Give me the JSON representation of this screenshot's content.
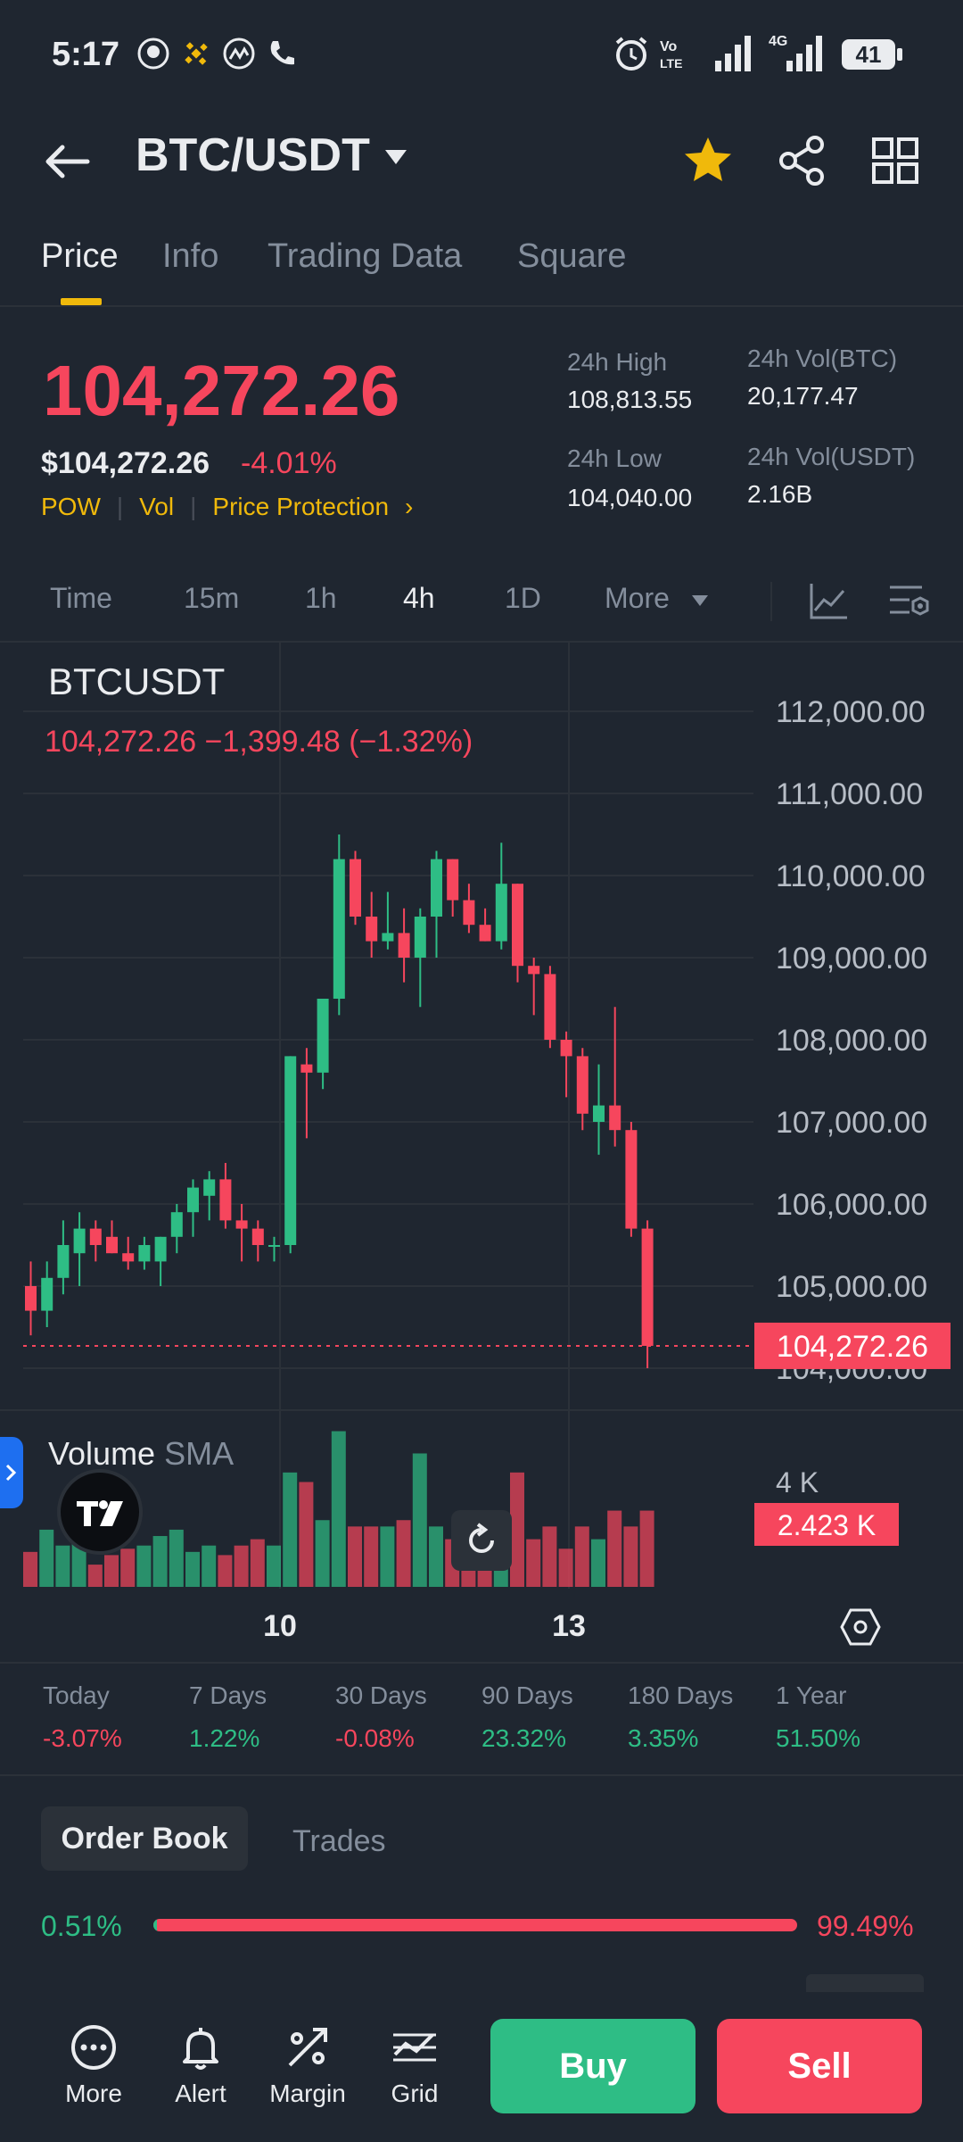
{
  "status_bar": {
    "time": "5:17",
    "network": "4G",
    "battery": "41"
  },
  "header": {
    "pair": "BTC/USDT"
  },
  "tabs": [
    {
      "label": "Price",
      "active": true
    },
    {
      "label": "Info",
      "active": false
    },
    {
      "label": "Trading Data",
      "active": false
    },
    {
      "label": "Square",
      "active": false
    }
  ],
  "price": {
    "last": "104,272.26",
    "usd": "$104,272.26",
    "change": "-4.01%",
    "tags": [
      "POW",
      "Vol",
      "Price Protection"
    ]
  },
  "stats": {
    "high_label": "24h High",
    "high": "108,813.55",
    "low_label": "24h Low",
    "low": "104,040.00",
    "vol_btc_label": "24h Vol(BTC)",
    "vol_btc": "20,177.47",
    "vol_usdt_label": "24h Vol(USDT)",
    "vol_usdt": "2.16B"
  },
  "timeframes": [
    "Time",
    "15m",
    "1h",
    "4h",
    "1D",
    "More"
  ],
  "active_timeframe": "4h",
  "chart_header": {
    "symbol": "BTCUSDT",
    "line": "104,272.26  −1,399.48 (−1.32%)"
  },
  "volume_header": {
    "title": "Volume",
    "sma": "SMA"
  },
  "colors": {
    "up": "#2ebd85",
    "down": "#f6465d",
    "accent": "#f0b90b",
    "bg": "#1f2630"
  },
  "chart_data": {
    "type": "candlestick",
    "y_axis_ticks": [
      "112,000.00",
      "111,000.00",
      "110,000.00",
      "109,000.00",
      "108,000.00",
      "107,000.00",
      "106,000.00",
      "105,000.00",
      "104,000.00"
    ],
    "ylim": [
      103500,
      112500
    ],
    "x_ticks": [
      "10",
      "13"
    ],
    "last_price_label": "104,272.26",
    "last_price": 104272.26,
    "volume_axis_label": "4 K",
    "last_volume_label": "2.423 K",
    "volume_max": 5.0,
    "candles": [
      {
        "o": 105000,
        "h": 105300,
        "l": 104400,
        "c": 104700
      },
      {
        "o": 104700,
        "h": 105300,
        "l": 104500,
        "c": 105100
      },
      {
        "o": 105100,
        "h": 105800,
        "l": 104900,
        "c": 105500
      },
      {
        "o": 105400,
        "h": 105900,
        "l": 105000,
        "c": 105700
      },
      {
        "o": 105700,
        "h": 105800,
        "l": 105300,
        "c": 105500
      },
      {
        "o": 105600,
        "h": 105800,
        "l": 105400,
        "c": 105400
      },
      {
        "o": 105400,
        "h": 105600,
        "l": 105200,
        "c": 105300
      },
      {
        "o": 105300,
        "h": 105600,
        "l": 105200,
        "c": 105500
      },
      {
        "o": 105300,
        "h": 105600,
        "l": 105000,
        "c": 105600
      },
      {
        "o": 105600,
        "h": 106000,
        "l": 105400,
        "c": 105900
      },
      {
        "o": 105900,
        "h": 106300,
        "l": 105600,
        "c": 106200
      },
      {
        "o": 106100,
        "h": 106400,
        "l": 105800,
        "c": 106300
      },
      {
        "o": 106300,
        "h": 106500,
        "l": 105700,
        "c": 105800
      },
      {
        "o": 105800,
        "h": 106000,
        "l": 105300,
        "c": 105700
      },
      {
        "o": 105700,
        "h": 105800,
        "l": 105300,
        "c": 105500
      },
      {
        "o": 105500,
        "h": 105600,
        "l": 105300,
        "c": 105500
      },
      {
        "o": 105500,
        "h": 107800,
        "l": 105400,
        "c": 107800
      },
      {
        "o": 107700,
        "h": 107900,
        "l": 106800,
        "c": 107600
      },
      {
        "o": 107600,
        "h": 108500,
        "l": 107400,
        "c": 108500
      },
      {
        "o": 108500,
        "h": 110500,
        "l": 108300,
        "c": 110200
      },
      {
        "o": 110200,
        "h": 110300,
        "l": 109400,
        "c": 109500
      },
      {
        "o": 109500,
        "h": 109800,
        "l": 109000,
        "c": 109200
      },
      {
        "o": 109200,
        "h": 109800,
        "l": 109100,
        "c": 109300
      },
      {
        "o": 109300,
        "h": 109600,
        "l": 108700,
        "c": 109000
      },
      {
        "o": 109000,
        "h": 109600,
        "l": 108400,
        "c": 109500
      },
      {
        "o": 109500,
        "h": 110300,
        "l": 109000,
        "c": 110200
      },
      {
        "o": 110200,
        "h": 110200,
        "l": 109500,
        "c": 109700
      },
      {
        "o": 109700,
        "h": 109900,
        "l": 109300,
        "c": 109400
      },
      {
        "o": 109400,
        "h": 109600,
        "l": 109200,
        "c": 109200
      },
      {
        "o": 109200,
        "h": 110400,
        "l": 109100,
        "c": 109900
      },
      {
        "o": 109900,
        "h": 109900,
        "l": 108700,
        "c": 108900
      },
      {
        "o": 108900,
        "h": 109000,
        "l": 108300,
        "c": 108800
      },
      {
        "o": 108800,
        "h": 108900,
        "l": 107900,
        "c": 108000
      },
      {
        "o": 108000,
        "h": 108100,
        "l": 107300,
        "c": 107800
      },
      {
        "o": 107800,
        "h": 107900,
        "l": 106900,
        "c": 107100
      },
      {
        "o": 107000,
        "h": 107700,
        "l": 106600,
        "c": 107200
      },
      {
        "o": 107200,
        "h": 108400,
        "l": 106700,
        "c": 106900
      },
      {
        "o": 106900,
        "h": 107000,
        "l": 105600,
        "c": 105700
      },
      {
        "o": 105700,
        "h": 105800,
        "l": 104000,
        "c": 104272
      }
    ],
    "volumes": [
      1.1,
      1.8,
      1.3,
      1.6,
      0.7,
      1.0,
      1.2,
      1.3,
      1.6,
      1.8,
      1.1,
      1.3,
      1.0,
      1.3,
      1.5,
      1.3,
      3.6,
      3.3,
      2.1,
      4.9,
      1.9,
      1.9,
      1.9,
      2.1,
      4.2,
      1.9,
      1.5,
      1.2,
      1.1,
      1.4,
      3.6,
      1.5,
      1.9,
      1.2,
      1.9,
      1.5,
      2.4,
      1.9,
      2.4
    ]
  },
  "performance": [
    {
      "label": "Today",
      "value": "-3.07%",
      "dir": "down"
    },
    {
      "label": "7 Days",
      "value": "1.22%",
      "dir": "up"
    },
    {
      "label": "30 Days",
      "value": "-0.08%",
      "dir": "down"
    },
    {
      "label": "90 Days",
      "value": "23.32%",
      "dir": "up"
    },
    {
      "label": "180 Days",
      "value": "3.35%",
      "dir": "up"
    },
    {
      "label": "1 Year",
      "value": "51.50%",
      "dir": "up"
    }
  ],
  "order_book": {
    "tab_active": "Order Book",
    "tab_other": "Trades",
    "bid_pct": "0.51%",
    "ask_pct": "99.49%",
    "bid_fraction": 0.0051
  },
  "bottom_nav": {
    "items": [
      {
        "label": "More",
        "icon": "more-circle-icon"
      },
      {
        "label": "Alert",
        "icon": "bell-icon"
      },
      {
        "label": "Margin",
        "icon": "margin-icon"
      },
      {
        "label": "Grid",
        "icon": "grid-chart-icon"
      }
    ],
    "buy": "Buy",
    "sell": "Sell"
  }
}
